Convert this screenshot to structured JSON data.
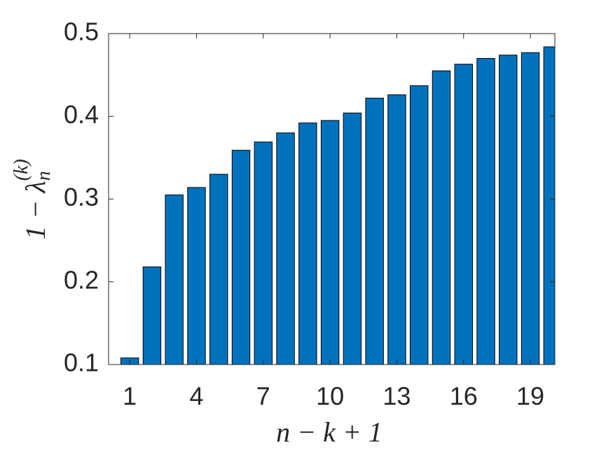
{
  "chart_data": {
    "type": "bar",
    "x": [
      1,
      2,
      3,
      4,
      5,
      6,
      7,
      8,
      9,
      10,
      11,
      12,
      13,
      14,
      15,
      16,
      17,
      18,
      19,
      20
    ],
    "values": [
      0.108,
      0.218,
      0.305,
      0.314,
      0.33,
      0.359,
      0.369,
      0.38,
      0.392,
      0.395,
      0.404,
      0.422,
      0.426,
      0.437,
      0.455,
      0.463,
      0.47,
      0.474,
      0.477,
      0.484
    ],
    "color": "#0072bd",
    "x_label": "n − k + 1",
    "y_label": {
      "base": "1 − λ",
      "sub": "n",
      "sup": "(k)"
    },
    "xlim": [
      0.05,
      20.1
    ],
    "xticks": [
      1,
      4,
      7,
      10,
      13,
      16,
      19
    ],
    "ylim": [
      0.1,
      0.5
    ],
    "yticks": [
      0.1,
      0.2,
      0.3,
      0.4,
      0.5
    ],
    "grid": false
  }
}
